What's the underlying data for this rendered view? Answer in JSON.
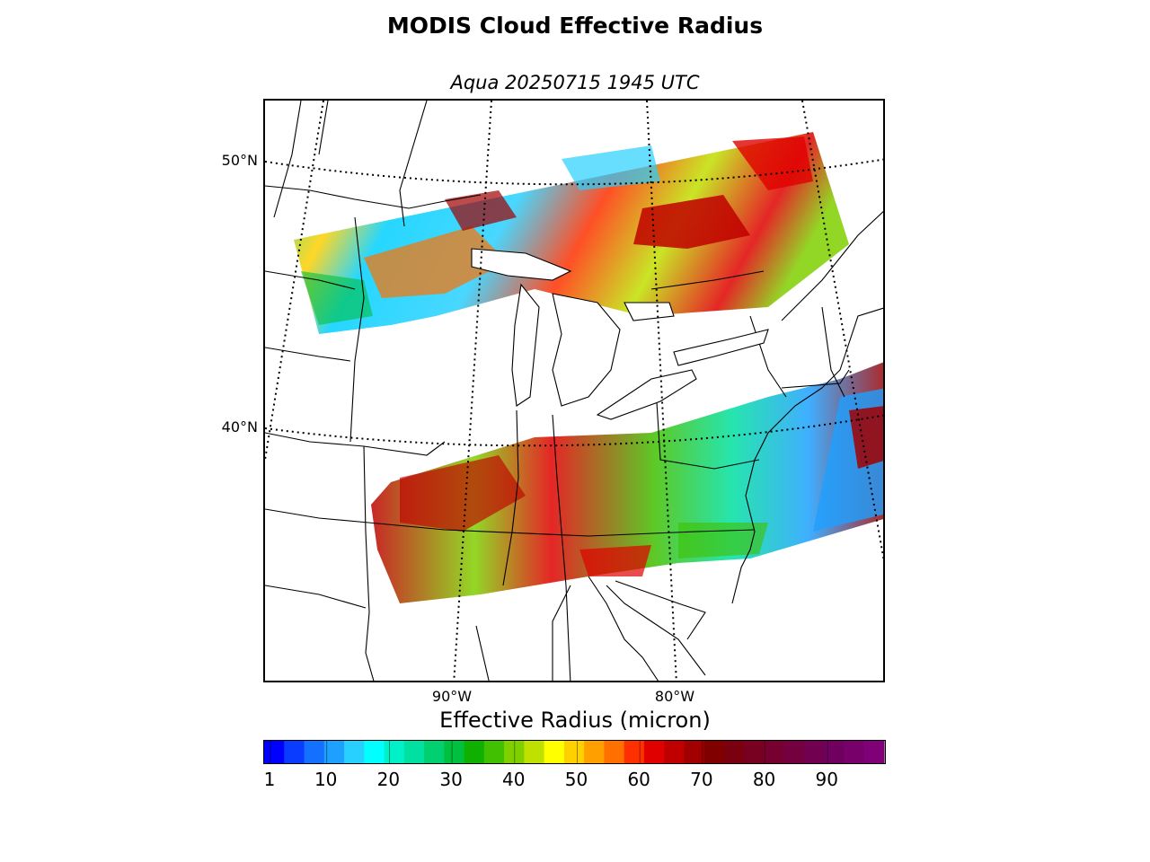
{
  "title": "MODIS Cloud Effective Radius",
  "subtitle": "Aqua 20250715 1945 UTC",
  "map": {
    "lat_labels": [
      {
        "text": "50°N",
        "lat": 50
      },
      {
        "text": "40°N",
        "lat": 40
      }
    ],
    "lon_labels": [
      {
        "text": "90°W",
        "lon": -90
      },
      {
        "text": "80°W",
        "lon": -80
      }
    ]
  },
  "colorbar": {
    "label": "Effective Radius (micron)",
    "ticks": [
      {
        "text": "1",
        "value": 1
      },
      {
        "text": "10",
        "value": 10
      },
      {
        "text": "20",
        "value": 20
      },
      {
        "text": "30",
        "value": 30
      },
      {
        "text": "40",
        "value": 40
      },
      {
        "text": "50",
        "value": 50
      },
      {
        "text": "60",
        "value": 60
      },
      {
        "text": "70",
        "value": 70
      },
      {
        "text": "80",
        "value": 80
      },
      {
        "text": "90",
        "value": 90
      }
    ],
    "range": [
      0,
      99
    ],
    "colors": [
      "#0000ff",
      "#0a3cff",
      "#1470ff",
      "#1ea0ff",
      "#28d0ff",
      "#00ffff",
      "#00f0c8",
      "#00e0a0",
      "#00d070",
      "#00c040",
      "#10b000",
      "#40c000",
      "#80d000",
      "#c0e000",
      "#ffff00",
      "#ffd000",
      "#ffa000",
      "#ff7000",
      "#ff3000",
      "#e00000",
      "#c00000",
      "#a00000",
      "#800000",
      "#7a0010",
      "#780020",
      "#760030",
      "#740040",
      "#720050",
      "#700060",
      "#78006a",
      "#800078"
    ]
  }
}
